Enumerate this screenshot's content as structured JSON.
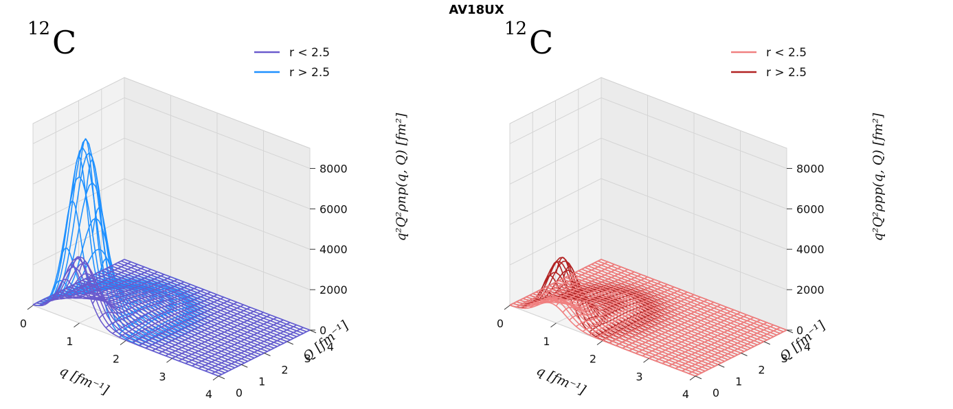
{
  "suptitle": "AV18UX",
  "chart_data": [
    {
      "type": "surface-3d",
      "nucleus_label": "12C",
      "nucleus_mass": "12",
      "nucleus_symbol": "C",
      "xlabel": "q [fm⁻¹]",
      "ylabel": "Q [fm⁻¹]",
      "zlabel": "q²Q²ρnp(q, Q) [fm²]",
      "xlim": [
        0,
        4
      ],
      "ylim": [
        0,
        4
      ],
      "zlim": [
        0,
        9000
      ],
      "xticks": [
        "0",
        "1",
        "2",
        "3",
        "4"
      ],
      "yticks": [
        "0",
        "1",
        "2",
        "3",
        "4"
      ],
      "zticks": [
        "0",
        "2000",
        "4000",
        "6000",
        "8000"
      ],
      "legend_position": "top-right",
      "grid": true,
      "series": [
        {
          "name": "r < 2.5",
          "color": "#6a5acd",
          "peak_value": 3000,
          "peak_q": 0.9,
          "peak_Q": 0.2
        },
        {
          "name": "r > 2.5",
          "color": "#1e90ff",
          "peak_value": 8700,
          "peak_q": 1.0,
          "peak_Q": 0.25
        }
      ]
    },
    {
      "type": "surface-3d",
      "nucleus_label": "12C",
      "nucleus_mass": "12",
      "nucleus_symbol": "C",
      "xlabel": "q [fm⁻¹]",
      "ylabel": "Q [fm⁻¹]",
      "zlabel": "q²Q²ρpp(q, Q) [fm²]",
      "xlim": [
        0,
        4
      ],
      "ylim": [
        0,
        4
      ],
      "zlim": [
        0,
        9000
      ],
      "xticks": [
        "0",
        "1",
        "2",
        "3",
        "4"
      ],
      "yticks": [
        "0",
        "1",
        "2",
        "3",
        "4"
      ],
      "zticks": [
        "0",
        "2000",
        "4000",
        "6000",
        "8000"
      ],
      "legend_position": "top-right",
      "grid": true,
      "series": [
        {
          "name": "r < 2.5",
          "color": "#f08080",
          "peak_value": 1000,
          "peak_q": 0.9,
          "peak_Q": 0.2
        },
        {
          "name": "r > 2.5",
          "color": "#b22222",
          "peak_value": 3000,
          "peak_q": 1.0,
          "peak_Q": 0.25
        }
      ]
    }
  ]
}
